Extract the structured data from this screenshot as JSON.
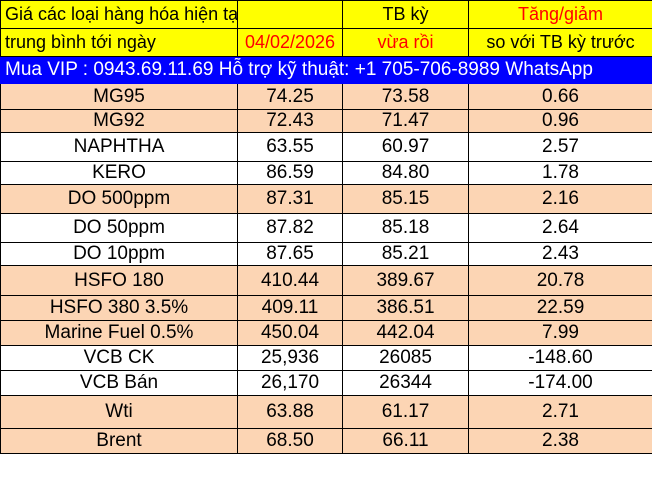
{
  "header": {
    "title_line1": "Giá các loại hàng hóa hiện tại",
    "title_line2_prefix": "trung bình tới ngày",
    "date": "04/02/2026",
    "prev_avg_line1": "TB kỳ",
    "prev_avg_line2": "vừa rồi",
    "change_line1": "Tăng/giảm",
    "change_line2": "so với TB kỳ trước"
  },
  "banner": "Mua VIP : 0943.69.11.69   Hỗ trợ kỹ thuật: +1 705-706-8989 WhatsApp",
  "colors": {
    "header_bg": "#ffff00",
    "banner_bg": "#0000ff",
    "peach_row": "#fcd5b4",
    "accent_red": "#ff0000"
  },
  "rows": [
    {
      "name": "MG95",
      "current": "74.25",
      "prev": "73.58",
      "change": "0.66"
    },
    {
      "name": "MG92",
      "current": "72.43",
      "prev": "71.47",
      "change": "0.96"
    },
    {
      "name": "NAPHTHA",
      "current": "63.55",
      "prev": "60.97",
      "change": "2.57"
    },
    {
      "name": "KERO",
      "current": "86.59",
      "prev": "84.80",
      "change": "1.78"
    },
    {
      "name": "DO 500ppm",
      "current": "87.31",
      "prev": "85.15",
      "change": "2.16"
    },
    {
      "name": "DO 50ppm",
      "current": "87.82",
      "prev": "85.18",
      "change": "2.64"
    },
    {
      "name": "DO 10ppm",
      "current": "87.65",
      "prev": "85.21",
      "change": "2.43"
    },
    {
      "name": "HSFO 180",
      "current": "410.44",
      "prev": "389.67",
      "change": "20.78"
    },
    {
      "name": "HSFO 380 3.5%",
      "current": "409.11",
      "prev": "386.51",
      "change": "22.59"
    },
    {
      "name": "Marine Fuel 0.5%",
      "current": "450.04",
      "prev": "442.04",
      "change": "7.99"
    },
    {
      "name": "VCB CK",
      "current": "25,936",
      "prev": "26085",
      "change": "-148.60"
    },
    {
      "name": "VCB Bán",
      "current": "26,170",
      "prev": "26344",
      "change": "-174.00"
    },
    {
      "name": "Wti",
      "current": "63.88",
      "prev": "61.17",
      "change": "2.71"
    },
    {
      "name": "Brent",
      "current": "68.50",
      "prev": "66.11",
      "change": "2.38"
    }
  ]
}
